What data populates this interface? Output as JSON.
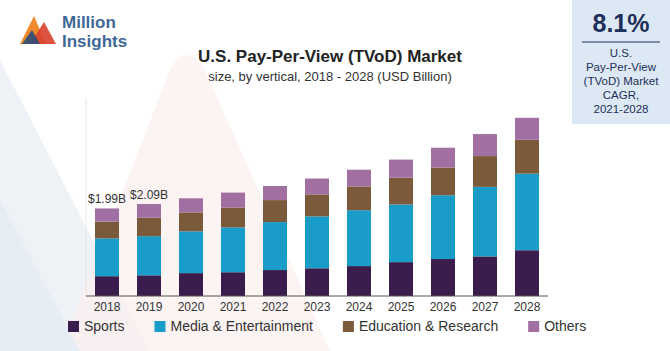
{
  "logo": {
    "lines": [
      "Million",
      "Insights"
    ]
  },
  "badge": {
    "value": "8.1%",
    "lines": [
      "U.S.",
      "Pay-Per-View",
      "(TVoD) Market",
      "CAGR,",
      "2021-2028"
    ]
  },
  "chart_data": {
    "type": "bar",
    "stacked": true,
    "title": "U.S. Pay-Per-View (TVoD) Market",
    "subtitle": "size, by vertical, 2018 - 2028 (USD Billion)",
    "categories": [
      "2018",
      "2019",
      "2020",
      "2021",
      "2022",
      "2023",
      "2024",
      "2025",
      "2026",
      "2027",
      "2028"
    ],
    "series": [
      {
        "name": "Sports",
        "color": "#3a1d4d",
        "values": [
          0.45,
          0.47,
          0.52,
          0.54,
          0.59,
          0.63,
          0.68,
          0.77,
          0.84,
          0.9,
          1.04
        ]
      },
      {
        "name": "Media & Entertainment",
        "color": "#1a9cc9",
        "values": [
          0.86,
          0.89,
          0.95,
          1.02,
          1.09,
          1.18,
          1.27,
          1.31,
          1.45,
          1.58,
          1.74
        ]
      },
      {
        "name": "Education & Research",
        "color": "#7b5a3b",
        "values": [
          0.38,
          0.42,
          0.43,
          0.45,
          0.5,
          0.5,
          0.54,
          0.61,
          0.63,
          0.7,
          0.77
        ]
      },
      {
        "name": "Others",
        "color": "#a16fa2",
        "values": [
          0.3,
          0.31,
          0.32,
          0.34,
          0.32,
          0.36,
          0.38,
          0.41,
          0.45,
          0.5,
          0.5
        ]
      }
    ],
    "annotations": [
      {
        "category": "2018",
        "value": 1.99,
        "label": "$1.99B"
      },
      {
        "category": "2019",
        "value": 2.09,
        "label": "$2.09B"
      }
    ],
    "ylim": [
      0,
      4.5
    ],
    "tick_labels": "x",
    "legend": "bottom"
  }
}
